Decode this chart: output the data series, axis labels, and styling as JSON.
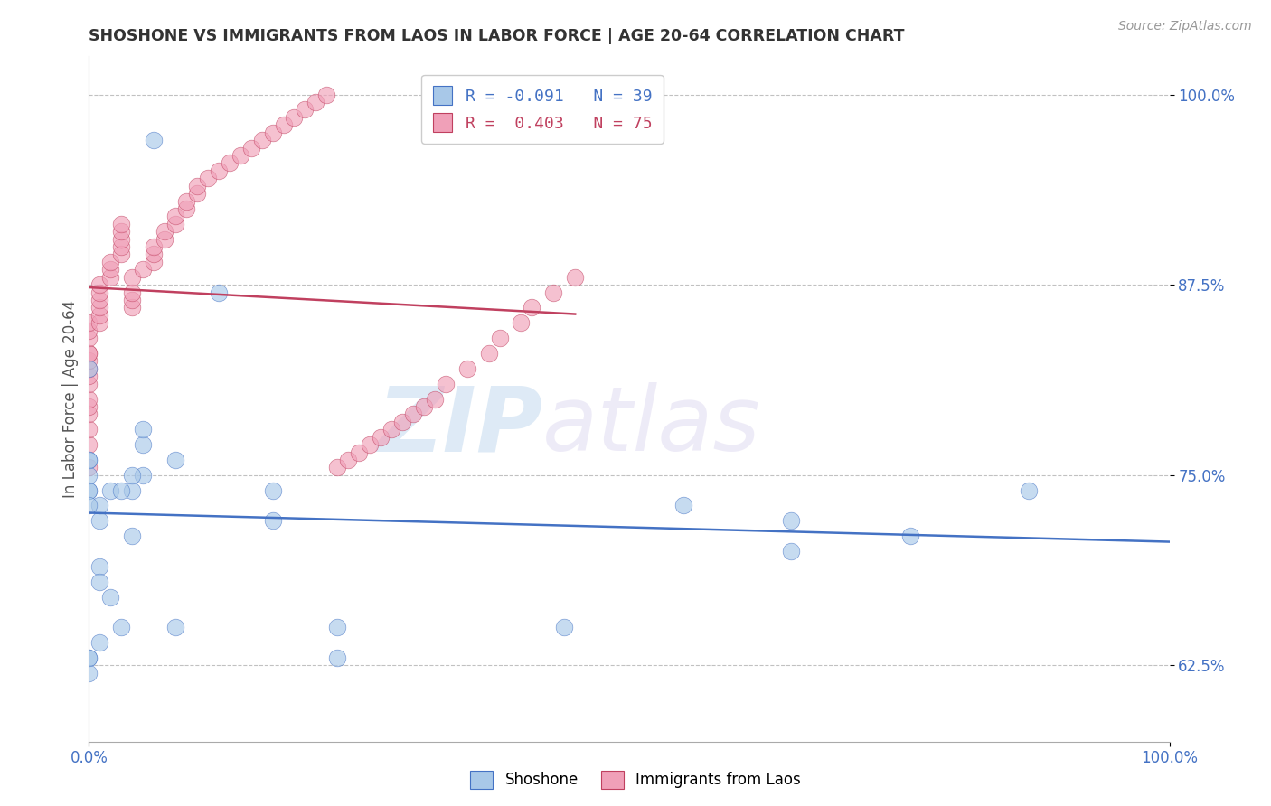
{
  "title": "SHOSHONE VS IMMIGRANTS FROM LAOS IN LABOR FORCE | AGE 20-64 CORRELATION CHART",
  "source": "Source: ZipAtlas.com",
  "ylabel": "In Labor Force | Age 20-64",
  "xlim": [
    0.0,
    1.0
  ],
  "ylim": [
    0.575,
    1.025
  ],
  "yticks": [
    0.625,
    0.75,
    0.875,
    1.0
  ],
  "ytick_labels": [
    "62.5%",
    "75.0%",
    "87.5%",
    "100.0%"
  ],
  "xticks": [
    0.0,
    1.0
  ],
  "xtick_labels": [
    "0.0%",
    "100.0%"
  ],
  "legend1_label": "R = -0.091   N = 39",
  "legend2_label": "R =  0.403   N = 75",
  "legend_footer1": "Shoshone",
  "legend_footer2": "Immigrants from Laos",
  "blue_color": "#a8c8e8",
  "pink_color": "#f0a0b8",
  "blue_line_color": "#4472c4",
  "pink_line_color": "#c0405f",
  "background_color": "#ffffff",
  "shoshone_x": [
    0.06,
    0.12,
    0.0,
    0.0,
    0.0,
    0.05,
    0.05,
    0.05,
    0.04,
    0.04,
    0.04,
    0.02,
    0.01,
    0.01,
    0.0,
    0.0,
    0.01,
    0.01,
    0.02,
    0.03,
    0.01,
    0.0,
    0.0,
    0.0,
    0.0,
    0.0,
    0.03,
    0.08,
    0.08,
    0.17,
    0.17,
    0.87,
    0.76,
    0.23,
    0.23,
    0.44,
    0.65,
    0.65,
    0.55
  ],
  "shoshone_y": [
    0.97,
    0.87,
    0.76,
    0.82,
    0.74,
    0.77,
    0.75,
    0.78,
    0.71,
    0.74,
    0.75,
    0.74,
    0.72,
    0.73,
    0.74,
    0.73,
    0.69,
    0.68,
    0.67,
    0.65,
    0.64,
    0.63,
    0.62,
    0.63,
    0.75,
    0.76,
    0.74,
    0.76,
    0.65,
    0.74,
    0.72,
    0.74,
    0.71,
    0.65,
    0.63,
    0.65,
    0.7,
    0.72,
    0.73
  ],
  "laos_x": [
    0.0,
    0.0,
    0.0,
    0.0,
    0.0,
    0.0,
    0.0,
    0.0,
    0.0,
    0.0,
    0.0,
    0.0,
    0.0,
    0.0,
    0.0,
    0.01,
    0.01,
    0.01,
    0.01,
    0.01,
    0.01,
    0.02,
    0.02,
    0.02,
    0.03,
    0.03,
    0.03,
    0.03,
    0.03,
    0.04,
    0.04,
    0.04,
    0.04,
    0.05,
    0.06,
    0.06,
    0.06,
    0.07,
    0.07,
    0.08,
    0.08,
    0.09,
    0.09,
    0.1,
    0.1,
    0.11,
    0.12,
    0.13,
    0.14,
    0.15,
    0.16,
    0.17,
    0.18,
    0.19,
    0.2,
    0.21,
    0.22,
    0.23,
    0.24,
    0.25,
    0.26,
    0.27,
    0.28,
    0.29,
    0.3,
    0.31,
    0.32,
    0.33,
    0.35,
    0.37,
    0.38,
    0.4,
    0.41,
    0.43,
    0.45
  ],
  "laos_y": [
    0.755,
    0.77,
    0.78,
    0.79,
    0.795,
    0.8,
    0.81,
    0.815,
    0.82,
    0.825,
    0.83,
    0.83,
    0.84,
    0.845,
    0.85,
    0.85,
    0.855,
    0.86,
    0.865,
    0.87,
    0.875,
    0.88,
    0.885,
    0.89,
    0.895,
    0.9,
    0.905,
    0.91,
    0.915,
    0.86,
    0.865,
    0.87,
    0.88,
    0.885,
    0.89,
    0.895,
    0.9,
    0.905,
    0.91,
    0.915,
    0.92,
    0.925,
    0.93,
    0.935,
    0.94,
    0.945,
    0.95,
    0.955,
    0.96,
    0.965,
    0.97,
    0.975,
    0.98,
    0.985,
    0.99,
    0.995,
    1.0,
    0.755,
    0.76,
    0.765,
    0.77,
    0.775,
    0.78,
    0.785,
    0.79,
    0.795,
    0.8,
    0.81,
    0.82,
    0.83,
    0.84,
    0.85,
    0.86,
    0.87,
    0.88
  ]
}
